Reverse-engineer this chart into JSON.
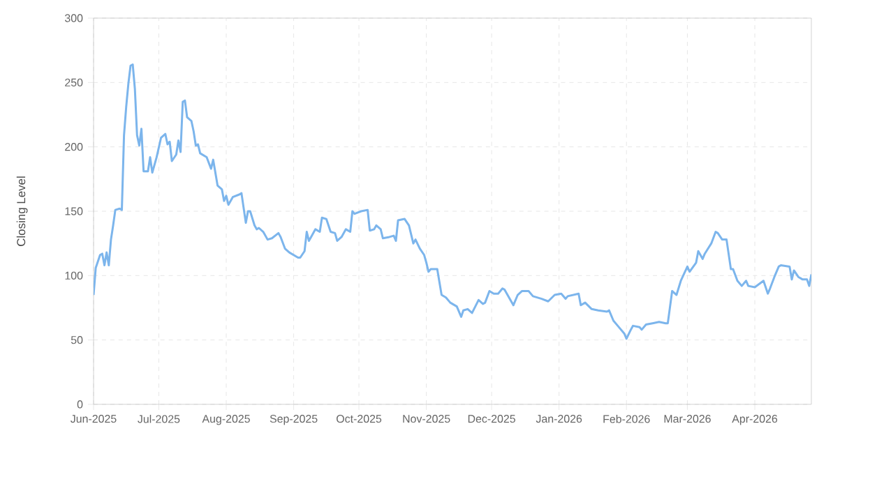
{
  "chart_data": {
    "type": "line",
    "ylabel": "Closing Level",
    "x": [
      "2025-06-01",
      "2025-06-02",
      "2025-06-04",
      "2025-06-05",
      "2025-06-06",
      "2025-06-07",
      "2025-06-08",
      "2025-06-09",
      "2025-06-10",
      "2025-06-11",
      "2025-06-13",
      "2025-06-14",
      "2025-06-15",
      "2025-06-16",
      "2025-06-17",
      "2025-06-18",
      "2025-06-19",
      "2025-06-20",
      "2025-06-21",
      "2025-06-22",
      "2025-06-23",
      "2025-06-24",
      "2025-06-26",
      "2025-06-27",
      "2025-06-28",
      "2025-06-30",
      "2025-07-02",
      "2025-07-04",
      "2025-07-05",
      "2025-07-06",
      "2025-07-07",
      "2025-07-09",
      "2025-07-10",
      "2025-07-11",
      "2025-07-12",
      "2025-07-13",
      "2025-07-14",
      "2025-07-16",
      "2025-07-17",
      "2025-07-18",
      "2025-07-19",
      "2025-07-20",
      "2025-07-23",
      "2025-07-25",
      "2025-07-26",
      "2025-07-28",
      "2025-07-30",
      "2025-07-31",
      "2025-08-01",
      "2025-08-02",
      "2025-08-04",
      "2025-08-07",
      "2025-08-08",
      "2025-08-10",
      "2025-08-11",
      "2025-08-12",
      "2025-08-14",
      "2025-08-15",
      "2025-08-16",
      "2025-08-18",
      "2025-08-20",
      "2025-08-22",
      "2025-08-25",
      "2025-08-26",
      "2025-08-28",
      "2025-08-30",
      "2025-09-03",
      "2025-09-04",
      "2025-09-06",
      "2025-09-07",
      "2025-09-08",
      "2025-09-09",
      "2025-09-11",
      "2025-09-13",
      "2025-09-14",
      "2025-09-16",
      "2025-09-18",
      "2025-09-20",
      "2025-09-21",
      "2025-09-23",
      "2025-09-25",
      "2025-09-27",
      "2025-09-28",
      "2025-09-29",
      "2025-10-02",
      "2025-10-05",
      "2025-10-06",
      "2025-10-08",
      "2025-10-09",
      "2025-10-11",
      "2025-10-12",
      "2025-10-15",
      "2025-10-17",
      "2025-10-18",
      "2025-10-19",
      "2025-10-22",
      "2025-10-24",
      "2025-10-26",
      "2025-10-27",
      "2025-10-29",
      "2025-10-31",
      "2025-11-01",
      "2025-11-02",
      "2025-11-03",
      "2025-11-06",
      "2025-11-08",
      "2025-11-10",
      "2025-11-12",
      "2025-11-15",
      "2025-11-17",
      "2025-11-18",
      "2025-11-20",
      "2025-11-22",
      "2025-11-25",
      "2025-11-27",
      "2025-11-28",
      "2025-11-30",
      "2025-12-02",
      "2025-12-04",
      "2025-12-06",
      "2025-12-07",
      "2025-12-10",
      "2025-12-11",
      "2025-12-13",
      "2025-12-15",
      "2025-12-18",
      "2025-12-20",
      "2025-12-24",
      "2025-12-27",
      "2025-12-30",
      "2026-01-02",
      "2026-01-04",
      "2026-01-05",
      "2026-01-10",
      "2026-01-11",
      "2026-01-13",
      "2026-01-16",
      "2026-01-19",
      "2026-01-23",
      "2026-01-24",
      "2026-01-26",
      "2026-01-28",
      "2026-01-31",
      "2026-02-01",
      "2026-02-03",
      "2026-02-04",
      "2026-02-07",
      "2026-02-08",
      "2026-02-10",
      "2026-02-13",
      "2026-02-16",
      "2026-02-19",
      "2026-02-20",
      "2026-02-22",
      "2026-02-24",
      "2026-02-26",
      "2026-03-01",
      "2026-03-02",
      "2026-03-05",
      "2026-03-06",
      "2026-03-08",
      "2026-03-09",
      "2026-03-12",
      "2026-03-14",
      "2026-03-15",
      "2026-03-17",
      "2026-03-19",
      "2026-03-21",
      "2026-03-22",
      "2026-03-24",
      "2026-03-26",
      "2026-03-28",
      "2026-03-29",
      "2026-04-01",
      "2026-04-05",
      "2026-04-07",
      "2026-04-08",
      "2026-04-10",
      "2026-04-12",
      "2026-04-13",
      "2026-04-17",
      "2026-04-18",
      "2026-04-19",
      "2026-04-21",
      "2026-04-23",
      "2026-04-25",
      "2026-04-26",
      "2026-04-27"
    ],
    "series": [
      {
        "color": "#7cb5ec",
        "values": [
          85,
          106,
          116,
          117,
          108,
          118,
          108,
          128,
          139,
          151,
          152,
          151,
          209,
          231,
          249,
          263,
          264,
          245,
          209,
          201,
          214,
          181,
          181,
          192,
          180,
          192,
          207,
          210,
          202,
          204,
          189,
          194,
          205,
          196,
          235,
          236,
          223,
          220,
          212,
          201,
          202,
          195,
          192,
          183,
          190,
          170,
          167,
          158,
          162,
          155,
          161,
          163,
          164,
          141,
          150,
          150,
          139,
          136,
          137,
          134,
          128,
          129,
          133,
          130,
          121,
          118,
          114,
          114,
          119,
          134,
          127,
          130,
          136,
          134,
          145,
          144,
          134,
          133,
          127,
          130,
          136,
          134,
          150,
          148,
          150,
          151,
          135,
          136,
          139,
          136,
          129,
          130,
          131,
          127,
          143,
          144,
          139,
          125,
          128,
          121,
          116,
          110,
          103,
          105,
          105,
          85,
          83,
          79,
          76,
          68,
          73,
          74,
          71,
          81,
          78,
          79,
          88,
          86,
          86,
          90,
          89,
          80,
          77,
          85,
          88,
          88,
          84,
          82,
          80,
          85,
          86,
          82,
          84,
          86,
          77,
          79,
          74,
          73,
          72,
          73,
          65,
          61,
          55,
          51,
          58,
          61,
          60,
          58,
          62,
          63,
          64,
          63,
          63,
          88,
          85,
          96,
          107,
          103,
          110,
          119,
          113,
          117,
          125,
          134,
          133,
          128,
          128,
          105,
          105,
          96,
          92,
          96,
          92,
          91,
          96,
          86,
          90,
          99,
          107,
          108,
          107,
          97,
          104,
          99,
          97,
          97,
          92,
          101
        ]
      }
    ],
    "xlim": [
      "2025-06-01",
      "2026-04-27"
    ],
    "xticks": [
      {
        "value": "2025-06-01",
        "label": "Jun-2025"
      },
      {
        "value": "2025-07-01",
        "label": "Jul-2025"
      },
      {
        "value": "2025-08-01",
        "label": "Aug-2025"
      },
      {
        "value": "2025-09-01",
        "label": "Sep-2025"
      },
      {
        "value": "2025-10-01",
        "label": "Oct-2025"
      },
      {
        "value": "2025-11-01",
        "label": "Nov-2025"
      },
      {
        "value": "2025-12-01",
        "label": "Dec-2025"
      },
      {
        "value": "2026-01-01",
        "label": "Jan-2026"
      },
      {
        "value": "2026-02-01",
        "label": "Feb-2026"
      },
      {
        "value": "2026-03-01",
        "label": "Mar-2026"
      },
      {
        "value": "2026-04-01",
        "label": "Apr-2026"
      }
    ],
    "ylim": [
      0,
      300
    ],
    "yticks": [
      0,
      50,
      100,
      150,
      200,
      250,
      300
    ],
    "grid": true,
    "line_style": "solid",
    "marker": "none"
  }
}
